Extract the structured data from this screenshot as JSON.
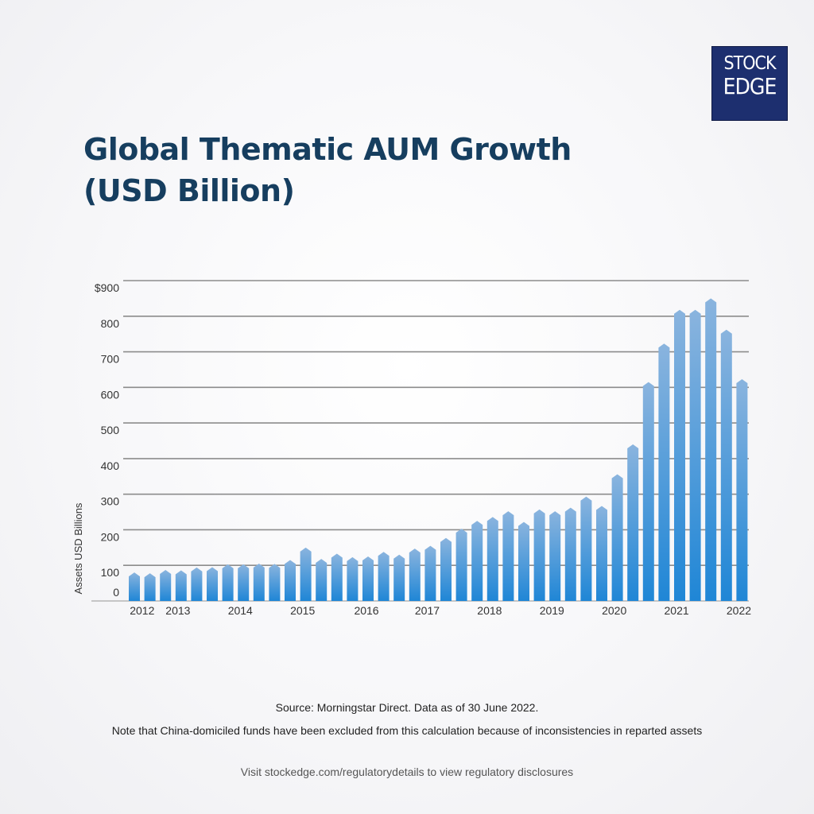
{
  "logo": {
    "line1": "STOCK",
    "line2": "EDGE"
  },
  "title_line1": "Global Thematic AUM Growth",
  "title_line2": "(USD Billion)",
  "source": "Source: Morningstar Direct. Data as of 30 June 2022.",
  "note": "Note that China-domiciled funds have been excluded from this calculation because of inconsistencies in reparted assets",
  "visit": "Visit stockedge.com/regulatorydetails to view regulatory disclosures",
  "colors": {
    "bar_top": "#8ab4de",
    "bar_bottom": "#1f86d6",
    "title": "#163e5f",
    "logo_bg": "#1d2f6f",
    "grid": "#8c8c8c"
  },
  "chart_data": {
    "type": "bar",
    "title": "Global Thematic AUM Growth (USD Billion)",
    "ylabel": "Assets USD Billions",
    "ylim": [
      0,
      900
    ],
    "y_ticks": [
      {
        "value": 0,
        "label": "0"
      },
      {
        "value": 100,
        "label": "100"
      },
      {
        "value": 200,
        "label": "200"
      },
      {
        "value": 300,
        "label": "300"
      },
      {
        "value": 400,
        "label": "400"
      },
      {
        "value": 500,
        "label": "500"
      },
      {
        "value": 600,
        "label": "600"
      },
      {
        "value": 700,
        "label": "700"
      },
      {
        "value": 800,
        "label": "800"
      },
      {
        "value": 900,
        "label": "$900"
      }
    ],
    "x_labels": [
      {
        "label": "2012",
        "index": 0.5
      },
      {
        "label": "2013",
        "index": 2.8
      },
      {
        "label": "2014",
        "index": 6.8
      },
      {
        "label": "2015",
        "index": 10.8
      },
      {
        "label": "2016",
        "index": 14.9
      },
      {
        "label": "2017",
        "index": 18.8
      },
      {
        "label": "2018",
        "index": 22.8
      },
      {
        "label": "2019",
        "index": 26.8
      },
      {
        "label": "2020",
        "index": 30.8
      },
      {
        "label": "2021",
        "index": 34.8
      },
      {
        "label": "2022",
        "index": 38.8
      }
    ],
    "values": [
      80,
      78,
      87,
      86,
      94,
      95,
      103,
      103,
      105,
      104,
      115,
      150,
      118,
      133,
      123,
      125,
      138,
      130,
      147,
      155,
      177,
      203,
      225,
      236,
      252,
      222,
      257,
      252,
      262,
      293,
      267,
      356,
      440,
      615,
      723,
      818,
      818,
      850,
      762,
      623
    ],
    "grid": true
  }
}
